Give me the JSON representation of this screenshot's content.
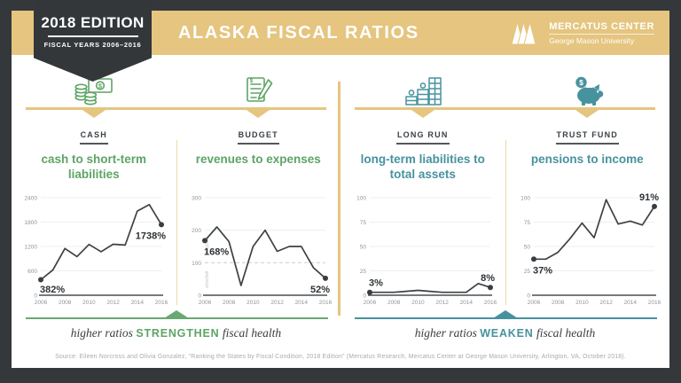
{
  "header": {
    "edition_badge": {
      "title": "2018 EDITION",
      "subtitle": "FISCAL YEARS 2006–2016"
    },
    "title": "ALASKA FISCAL RATIOS",
    "logo": {
      "org": "MERCATUS CENTER",
      "university": "George Mason University"
    }
  },
  "colors": {
    "dark": "#34383b",
    "gold": "#e5c57f",
    "green": "#5ea465",
    "teal": "#47929f",
    "line": "#3d4144"
  },
  "panels": [
    {
      "category": "CASH",
      "title": "cash to short-term liabilities",
      "icon": "cash-coins-icon"
    },
    {
      "category": "BUDGET",
      "title": "revenues to expenses",
      "icon": "budget-document-icon"
    },
    {
      "category": "LONG RUN",
      "title": "long-term liabilities to total assets",
      "icon": "buildings-icon"
    },
    {
      "category": "TRUST FUND",
      "title": "pensions to income",
      "icon": "piggy-bank-icon"
    }
  ],
  "chart_data": [
    {
      "type": "line",
      "title": "cash to short-term liabilities",
      "x": [
        2006,
        2007,
        2008,
        2009,
        2010,
        2011,
        2012,
        2013,
        2014,
        2015,
        2016
      ],
      "values": [
        382,
        620,
        1150,
        950,
        1250,
        1070,
        1255,
        1235,
        2070,
        2230,
        1738
      ],
      "ylim": [
        0,
        2400
      ],
      "yticks": [
        0,
        600,
        1200,
        1800,
        2400
      ],
      "xticks": [
        2006,
        2008,
        2010,
        2012,
        2014,
        2016
      ],
      "start_label": "382%",
      "end_label": "1738%",
      "start_label_pos": "below",
      "end_label_pos": "below"
    },
    {
      "type": "line",
      "title": "revenues to expenses",
      "x": [
        2006,
        2007,
        2008,
        2009,
        2010,
        2011,
        2012,
        2013,
        2014,
        2015,
        2016
      ],
      "values": [
        168,
        210,
        165,
        30,
        150,
        200,
        135,
        150,
        150,
        85,
        52
      ],
      "ylim": [
        0,
        300
      ],
      "yticks": [
        0,
        100,
        200,
        300
      ],
      "xticks": [
        2006,
        2008,
        2010,
        2012,
        2014,
        2016
      ],
      "breakeven": 100,
      "above_breakeven_label": "surplus",
      "below_breakeven_label": "shortfall",
      "start_label": "168%",
      "end_label": "52%",
      "start_label_pos": "below",
      "end_label_pos": "below"
    },
    {
      "type": "line",
      "title": "long-term liabilities to total assets",
      "x": [
        2006,
        2007,
        2008,
        2009,
        2010,
        2011,
        2012,
        2013,
        2014,
        2015,
        2016
      ],
      "values": [
        3,
        3,
        3,
        4,
        5,
        4,
        3,
        3,
        3,
        12,
        8
      ],
      "ylim": [
        0,
        100
      ],
      "yticks": [
        0,
        25,
        50,
        75,
        100
      ],
      "xticks": [
        2006,
        2008,
        2010,
        2012,
        2014,
        2016
      ],
      "start_label": "3%",
      "end_label": "8%",
      "start_label_pos": "above",
      "end_label_pos": "above"
    },
    {
      "type": "line",
      "title": "pensions to income",
      "x": [
        2006,
        2007,
        2008,
        2009,
        2010,
        2011,
        2012,
        2013,
        2014,
        2015,
        2016
      ],
      "values": [
        37,
        37,
        44,
        58,
        74,
        59,
        98,
        73,
        76,
        72,
        91
      ],
      "ylim": [
        0,
        100
      ],
      "yticks": [
        0,
        25,
        50,
        75,
        100
      ],
      "xticks": [
        2006,
        2008,
        2010,
        2012,
        2014,
        2016
      ],
      "start_label": "37%",
      "end_label": "91%",
      "start_label_pos": "below",
      "end_label_pos": "above"
    }
  ],
  "footnotes": {
    "left": {
      "prefix": "higher ratios",
      "emphasis": "STRENGTHEN",
      "suffix": "fiscal health"
    },
    "right": {
      "prefix": "higher ratios",
      "emphasis": "WEAKEN",
      "suffix": "fiscal health"
    }
  },
  "source": "Source: Eileen Norcross and Olivia Gonzalez, “Ranking the States by Fiscal Condition, 2018 Edition” (Mercatus Research, Mercatus Center at George Mason University, Arlington, VA, October 2018)."
}
